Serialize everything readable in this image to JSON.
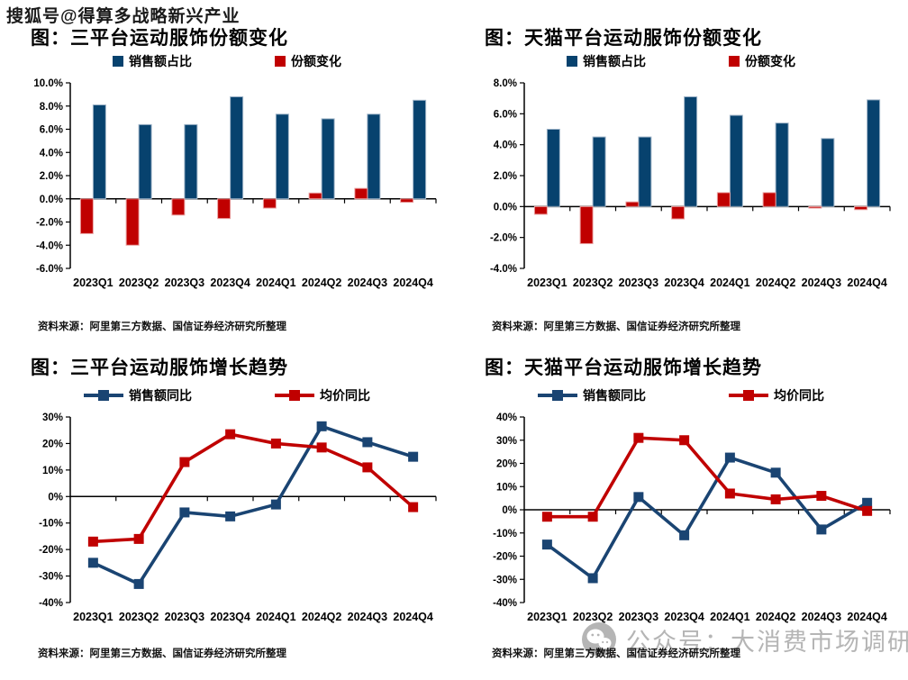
{
  "watermarks": {
    "top": "搜狐号@得算多战略新兴产业",
    "bottom": "公众号：大消费市场调研",
    "bottom_icon": "wechat-icon",
    "bottom_color": "#a9a9a9"
  },
  "source_note": "资料来源：阿里第三方数据、国信证券经济研究所整理",
  "colors": {
    "bar_blue": "#07426e",
    "bar_blue_edge": "#9fb4c8",
    "bar_red": "#c00000",
    "bar_red_edge": "#e9a2a2",
    "line_blue": "#1a4472",
    "line_red": "#c00000",
    "axis": "#000000"
  },
  "chart_data": [
    {
      "type": "bar",
      "title": "图：三平台运动服饰份额变化",
      "categories": [
        "2023Q1",
        "2023Q2",
        "2023Q3",
        "2023Q4",
        "2024Q1",
        "2024Q2",
        "2024Q3",
        "2024Q4"
      ],
      "series": [
        {
          "name": "销售额占比",
          "color": "#07426e",
          "edge": "#9fb4c8",
          "values": [
            8.1,
            6.4,
            6.4,
            8.8,
            7.3,
            6.9,
            7.3,
            8.5
          ]
        },
        {
          "name": "份额变化",
          "color": "#c00000",
          "edge": "#e9a2a2",
          "values": [
            -3.0,
            -4.0,
            -1.4,
            -1.7,
            -0.8,
            0.5,
            0.9,
            -0.3
          ]
        }
      ],
      "ylim": [
        -6,
        10
      ],
      "ytick": {
        "step": 2,
        "decimals": 1
      },
      "grid": false,
      "legend_position": "top",
      "source": "资料来源：阿里第三方数据、国信证券经济研究所整理"
    },
    {
      "type": "bar",
      "title": "图：天猫平台运动服饰份额变化",
      "categories": [
        "2023Q1",
        "2023Q2",
        "2023Q3",
        "2023Q4",
        "2024Q1",
        "2024Q2",
        "2024Q3",
        "2024Q4"
      ],
      "series": [
        {
          "name": "销售额占比",
          "color": "#07426e",
          "edge": "#9fb4c8",
          "values": [
            5.0,
            4.5,
            4.5,
            7.1,
            5.9,
            5.4,
            4.4,
            6.9
          ]
        },
        {
          "name": "份额变化",
          "color": "#c00000",
          "edge": "#e9a2a2",
          "values": [
            -0.5,
            -2.4,
            0.3,
            -0.8,
            0.9,
            0.9,
            -0.1,
            -0.2
          ]
        }
      ],
      "ylim": [
        -4,
        8
      ],
      "ytick": {
        "step": 2,
        "decimals": 1
      },
      "grid": false,
      "legend_position": "top",
      "source": "资料来源：阿里第三方数据、国信证券经济研究所整理"
    },
    {
      "type": "line",
      "title": "图：三平台运动服饰增长趋势",
      "categories": [
        "2023Q1",
        "2023Q2",
        "2023Q3",
        "2023Q4",
        "2024Q1",
        "2024Q2",
        "2024Q3",
        "2024Q4"
      ],
      "series": [
        {
          "name": "销售额同比",
          "color": "#1a4472",
          "values": [
            -25,
            -33,
            -6,
            -7.5,
            -3,
            26.5,
            20.5,
            15
          ]
        },
        {
          "name": "均价同比",
          "color": "#c00000",
          "values": [
            -17,
            -16,
            13,
            23.5,
            20,
            18.5,
            11,
            -4
          ]
        }
      ],
      "ylim": [
        -40,
        30
      ],
      "ytick": {
        "step": 10,
        "decimals": 0
      },
      "grid": false,
      "legend_position": "top",
      "source": "资料来源：阿里第三方数据、国信证券经济研究所整理"
    },
    {
      "type": "line",
      "title": "图：天猫平台运动服饰增长趋势",
      "categories": [
        "2023Q1",
        "2023Q2",
        "2023Q3",
        "2023Q4",
        "2024Q1",
        "2024Q2",
        "2024Q3",
        "2024Q4"
      ],
      "series": [
        {
          "name": "销售额同比",
          "color": "#1a4472",
          "values": [
            -15,
            -29.5,
            5.5,
            -11,
            22.5,
            16,
            -8.5,
            3
          ]
        },
        {
          "name": "均价同比",
          "color": "#c00000",
          "values": [
            -3,
            -3,
            31,
            30,
            7,
            4.5,
            6,
            -0.5
          ]
        }
      ],
      "ylim": [
        -40,
        40
      ],
      "ytick": {
        "step": 10,
        "decimals": 0
      },
      "grid": false,
      "legend_position": "top",
      "source": "资料来源：阿里第三方数据、国信证券经济研究所整理"
    }
  ]
}
